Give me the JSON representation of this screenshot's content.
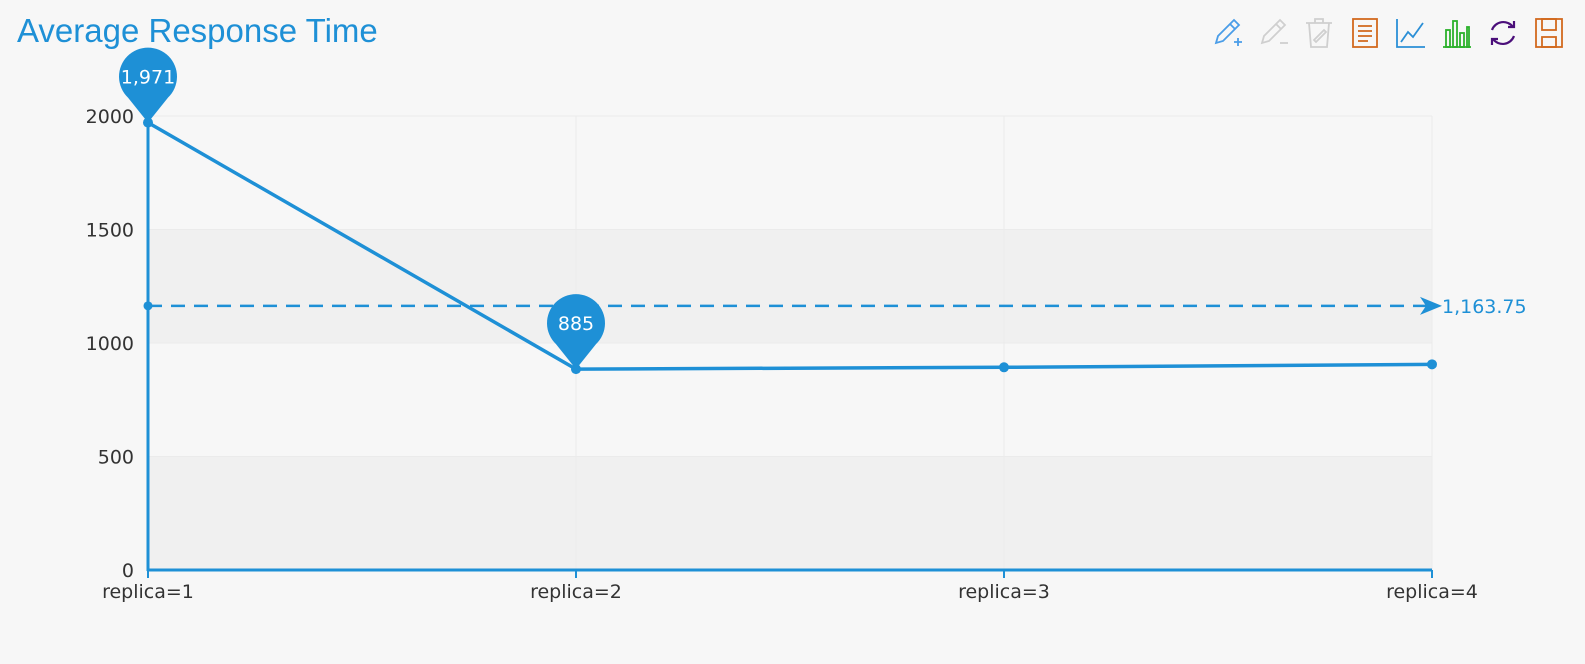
{
  "title": "Average Response Time",
  "colors": {
    "series": "#1e90d6",
    "axis_text": "#333333",
    "grid_line": "#ebebeb",
    "band_light": "#f7f7f7",
    "band_dark": "#f0f0f0"
  },
  "toolbox": [
    {
      "name": "pencil-plus-icon",
      "color": "#4a9de8"
    },
    {
      "name": "pencil-minus-icon",
      "color": "#cfcfcf"
    },
    {
      "name": "trash-icon",
      "color": "#cfcfcf"
    },
    {
      "name": "data-view-icon",
      "color": "#d2691e"
    },
    {
      "name": "line-chart-icon",
      "color": "#2b8fd6"
    },
    {
      "name": "bar-chart-icon",
      "color": "#2bb12b"
    },
    {
      "name": "refresh-icon",
      "color": "#4b0f7a"
    },
    {
      "name": "save-icon",
      "color": "#d2691e"
    }
  ],
  "chart_data": {
    "type": "line",
    "title": "Average Response Time",
    "categories": [
      "replica=1",
      "replica=2",
      "replica=3",
      "replica=4"
    ],
    "series": [
      {
        "values": [
          1971,
          885,
          893,
          906
        ]
      }
    ],
    "ylim": [
      0,
      2000
    ],
    "yticks": [
      "0",
      "500",
      "1000",
      "1500",
      "2000"
    ],
    "mark_points": [
      {
        "category_index": 0,
        "value": 1971,
        "label": "1,971"
      },
      {
        "category_index": 1,
        "value": 885,
        "label": "885"
      }
    ],
    "mark_line": {
      "value": 1163.75,
      "label": "1,163.75"
    },
    "grid": true,
    "legend": "none"
  }
}
